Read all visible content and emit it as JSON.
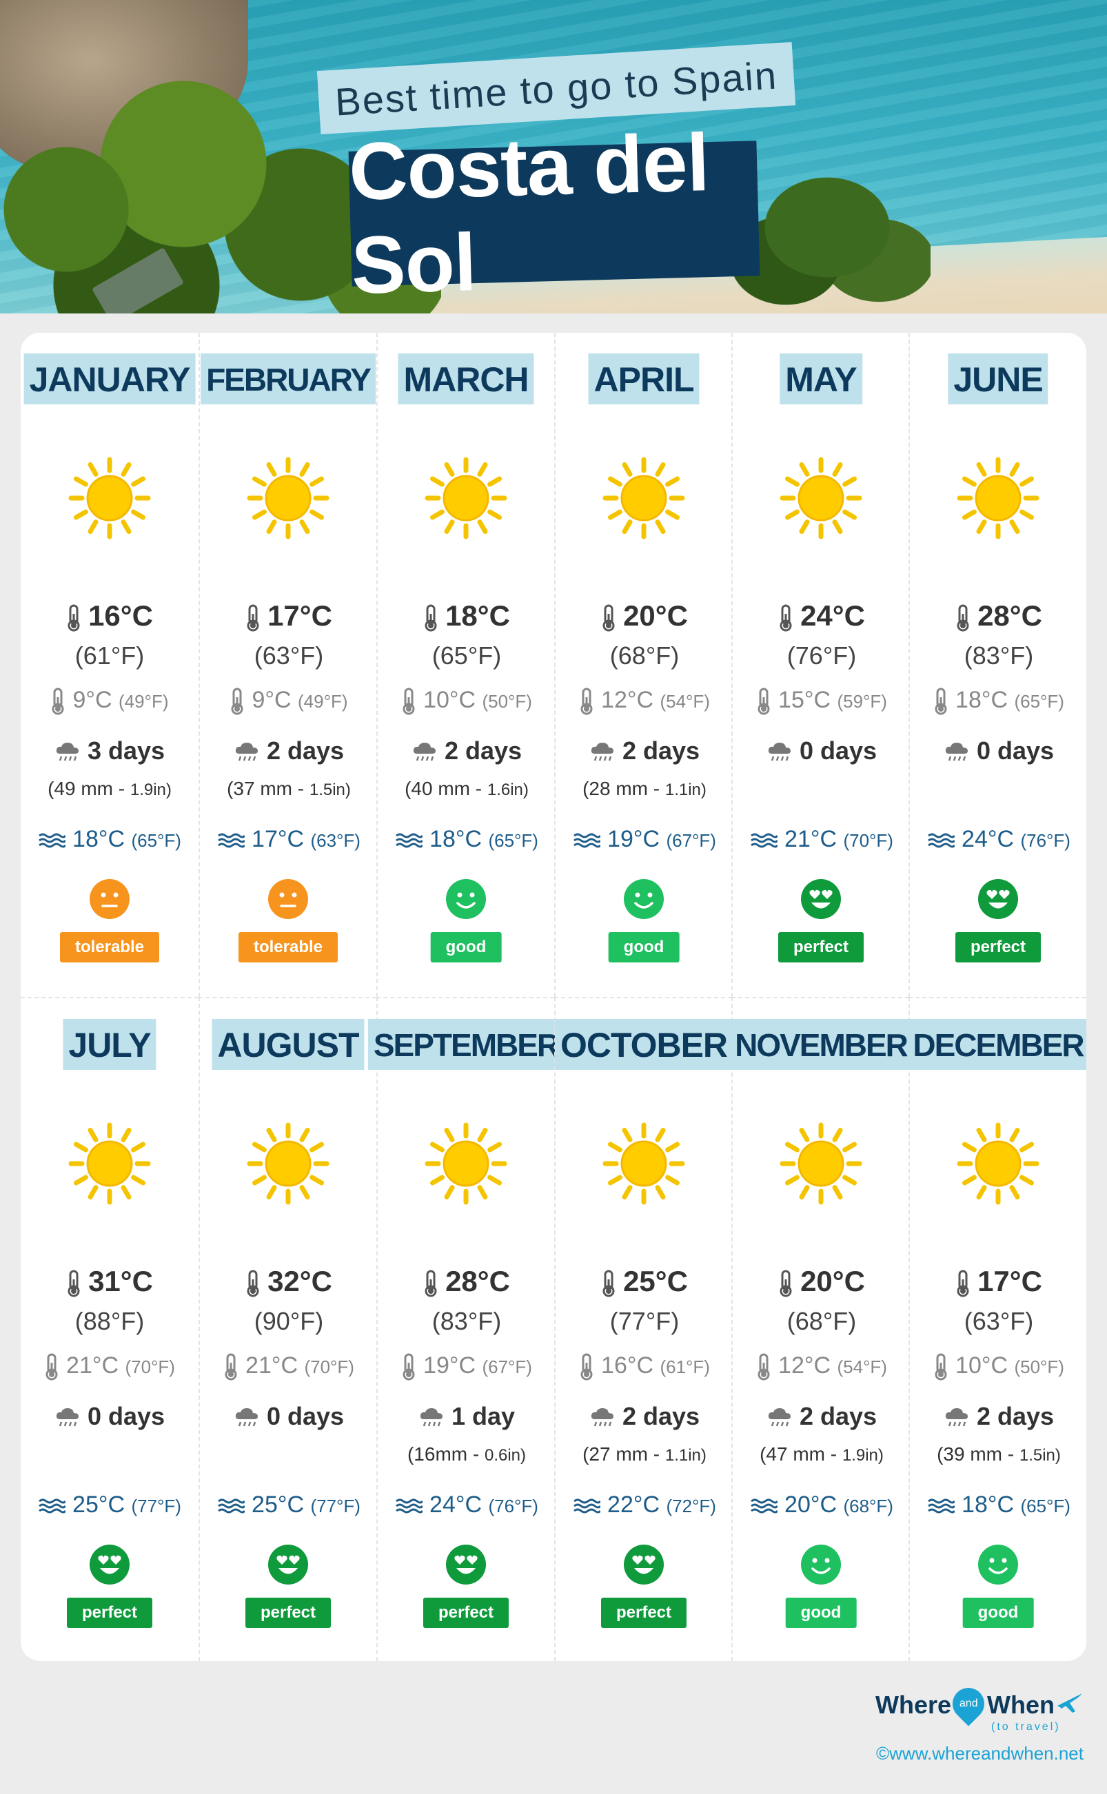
{
  "header": {
    "subtitle": "Best time to go to Spain",
    "title": "Costa del Sol"
  },
  "ratings": {
    "tolerable": {
      "color": "#f7941d",
      "face": "neutral"
    },
    "good": {
      "color": "#1ec060",
      "face": "smile"
    },
    "perfect": {
      "color": "#0f9a3c",
      "face": "heart-eyes"
    }
  },
  "months": [
    {
      "name": "JANUARY",
      "high": "16°C",
      "high_f": "(61°F)",
      "low": "9°C",
      "low_f": "(49°F)",
      "rain_days": "3 days",
      "rain_mm": "(49 mm - ",
      "rain_in": "1.9in)",
      "sea": "18°C",
      "sea_f": "(65°F)",
      "rating": "tolerable"
    },
    {
      "name": "FEBRUARY",
      "high": "17°C",
      "high_f": "(63°F)",
      "low": "9°C",
      "low_f": "(49°F)",
      "rain_days": "2 days",
      "rain_mm": "(37 mm - ",
      "rain_in": "1.5in)",
      "sea": "17°C",
      "sea_f": "(63°F)",
      "rating": "tolerable"
    },
    {
      "name": "MARCH",
      "high": "18°C",
      "high_f": "(65°F)",
      "low": "10°C",
      "low_f": "(50°F)",
      "rain_days": "2 days",
      "rain_mm": "(40 mm - ",
      "rain_in": "1.6in)",
      "sea": "18°C",
      "sea_f": "(65°F)",
      "rating": "good"
    },
    {
      "name": "APRIL",
      "high": "20°C",
      "high_f": "(68°F)",
      "low": "12°C",
      "low_f": "(54°F)",
      "rain_days": "2 days",
      "rain_mm": "(28 mm - ",
      "rain_in": "1.1in)",
      "sea": "19°C",
      "sea_f": "(67°F)",
      "rating": "good"
    },
    {
      "name": "MAY",
      "high": "24°C",
      "high_f": "(76°F)",
      "low": "15°C",
      "low_f": "(59°F)",
      "rain_days": "0 days",
      "rain_mm": "",
      "rain_in": "",
      "sea": "21°C",
      "sea_f": "(70°F)",
      "rating": "perfect"
    },
    {
      "name": "JUNE",
      "high": "28°C",
      "high_f": "(83°F)",
      "low": "18°C",
      "low_f": "(65°F)",
      "rain_days": "0 days",
      "rain_mm": "",
      "rain_in": "",
      "sea": "24°C",
      "sea_f": "(76°F)",
      "rating": "perfect"
    },
    {
      "name": "JULY",
      "high": "31°C",
      "high_f": "(88°F)",
      "low": "21°C",
      "low_f": "(70°F)",
      "rain_days": "0 days",
      "rain_mm": "",
      "rain_in": "",
      "sea": "25°C",
      "sea_f": "(77°F)",
      "rating": "perfect"
    },
    {
      "name": "AUGUST",
      "high": "32°C",
      "high_f": "(90°F)",
      "low": "21°C",
      "low_f": "(70°F)",
      "rain_days": "0 days",
      "rain_mm": "",
      "rain_in": "",
      "sea": "25°C",
      "sea_f": "(77°F)",
      "rating": "perfect"
    },
    {
      "name": "SEPTEMBER",
      "high": "28°C",
      "high_f": "(83°F)",
      "low": "19°C",
      "low_f": "(67°F)",
      "rain_days": "1 day",
      "rain_mm": "(16mm - ",
      "rain_in": "0.6in)",
      "sea": "24°C",
      "sea_f": "(76°F)",
      "rating": "perfect"
    },
    {
      "name": "OCTOBER",
      "high": "25°C",
      "high_f": "(77°F)",
      "low": "16°C",
      "low_f": "(61°F)",
      "rain_days": "2 days",
      "rain_mm": "(27 mm - ",
      "rain_in": "1.1in)",
      "sea": "22°C",
      "sea_f": "(72°F)",
      "rating": "perfect"
    },
    {
      "name": "NOVEMBER",
      "high": "20°C",
      "high_f": "(68°F)",
      "low": "12°C",
      "low_f": "(54°F)",
      "rain_days": "2 days",
      "rain_mm": "(47 mm - ",
      "rain_in": "1.9in)",
      "sea": "20°C",
      "sea_f": "(68°F)",
      "rating": "good"
    },
    {
      "name": "DECEMBER",
      "high": "17°C",
      "high_f": "(63°F)",
      "low": "10°C",
      "low_f": "(50°F)",
      "rain_days": "2 days",
      "rain_mm": "(39 mm - ",
      "rain_in": "1.5in)",
      "sea": "18°C",
      "sea_f": "(65°F)",
      "rating": "good"
    }
  ],
  "footer": {
    "logo_where": "Where",
    "logo_and": "and",
    "logo_when": "When",
    "logo_tagline": "(to travel)",
    "copyright": "©www.whereandwhen.net"
  }
}
